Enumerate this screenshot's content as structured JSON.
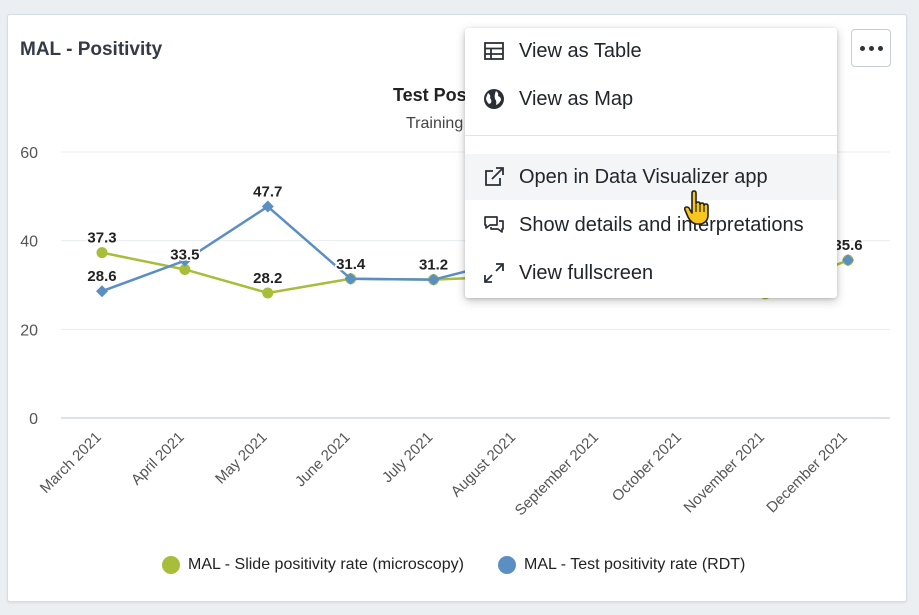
{
  "card": {
    "title": "MAL - Positivity",
    "menu_button_icon": "more-horizontal-icon"
  },
  "chart_data": {
    "type": "line",
    "title": "Test Pos",
    "subtitle": "Training",
    "categories": [
      "March 2021",
      "April 2021",
      "May 2021",
      "June 2021",
      "July 2021",
      "August 2021",
      "September 2021",
      "October 2021",
      "November 2021",
      "December 2021"
    ],
    "ylim": [
      0,
      60
    ],
    "yticks": [
      0,
      20,
      40,
      60
    ],
    "grid": true,
    "legend_position": "bottom",
    "series": [
      {
        "name": "MAL - Slide positivity rate (microscopy)",
        "color": "#a8bd3a",
        "marker": "circle",
        "values": [
          37.3,
          33.5,
          28.2,
          31.4,
          31.2,
          32.0,
          null,
          null,
          28.0,
          35.6
        ],
        "labels": [
          "37.3",
          "33.5",
          "28.2",
          "",
          "",
          "",
          "",
          "",
          "",
          ""
        ]
      },
      {
        "name": "MAL - Test positivity rate (RDT)",
        "color": "#5b8fc4",
        "marker": "diamond",
        "values": [
          28.6,
          35.5,
          47.7,
          31.4,
          31.2,
          36.0,
          null,
          null,
          null,
          35.6
        ],
        "labels": [
          "28.6",
          "",
          "47.7",
          "31.4",
          "31.2",
          "",
          "",
          "",
          "",
          "35.6"
        ]
      }
    ]
  },
  "menu": {
    "items": [
      {
        "label": "View as Table",
        "icon": "table-icon"
      },
      {
        "label": "View as Map",
        "icon": "globe-icon"
      },
      {
        "label": "Open in Data Visualizer app",
        "icon": "external-link-icon"
      },
      {
        "label": "Show details and interpretations",
        "icon": "comments-icon"
      },
      {
        "label": "View fullscreen",
        "icon": "fullscreen-icon"
      }
    ]
  },
  "cursor_icon": "hand-pointer-icon"
}
